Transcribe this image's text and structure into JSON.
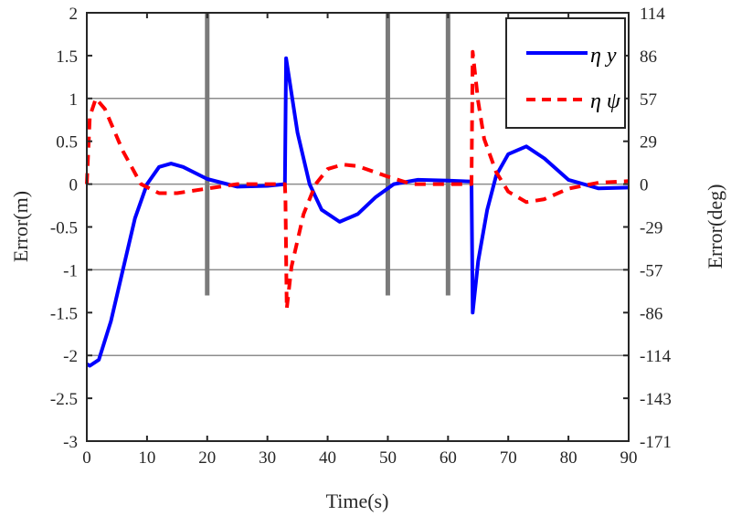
{
  "chart_data": {
    "type": "line",
    "xlabel": "Time(s)",
    "ylabel": "Error(m)",
    "ylabel_right": "Error(deg)",
    "xlim": [
      0,
      90
    ],
    "ylim": [
      -3,
      2
    ],
    "ylim_right": [
      -171,
      114
    ],
    "xticks": [
      "0",
      "10",
      "20",
      "30",
      "40",
      "50",
      "60",
      "70",
      "80",
      "90"
    ],
    "yticks": [
      "2",
      "1.5",
      "1",
      "0.5",
      "0",
      "-0.5",
      "-1",
      "-1.5",
      "-2",
      "-2.5",
      "-3"
    ],
    "yticks_right": [
      "114",
      "86",
      "57",
      "29",
      "0",
      "-29",
      "-57",
      "-86",
      "-114",
      "-143",
      "-171"
    ],
    "grid": "horizontal at y=1, 0, -1, -2",
    "vertical_markers_s": [
      20,
      50,
      60
    ],
    "legend_placement": "top-right",
    "series": [
      {
        "name": "η y",
        "axis": "left",
        "color": "#0000ff",
        "style": "solid",
        "x": [
          0,
          0.5,
          2,
          4,
          6,
          8,
          10,
          12,
          14,
          16,
          20,
          25,
          30,
          32.9,
          33.1,
          35,
          37,
          39,
          42,
          45,
          48,
          51,
          55,
          60,
          63.9,
          64.1,
          65,
          66.5,
          68,
          70,
          73,
          76,
          80,
          85,
          90
        ],
        "y": [
          -2.1,
          -2.12,
          -2.05,
          -1.6,
          -1.0,
          -0.4,
          0.0,
          0.2,
          0.24,
          0.2,
          0.06,
          -0.03,
          -0.02,
          0.0,
          1.47,
          0.6,
          0.0,
          -0.3,
          -0.44,
          -0.35,
          -0.15,
          0.0,
          0.05,
          0.04,
          0.03,
          -1.5,
          -0.9,
          -0.3,
          0.1,
          0.35,
          0.44,
          0.3,
          0.05,
          -0.05,
          -0.04
        ]
      },
      {
        "name": "η ψ",
        "axis": "right",
        "color": "#ff0000",
        "style": "dashed",
        "x": [
          0,
          0.5,
          1.5,
          3,
          6,
          9,
          12,
          15,
          20,
          25,
          32.9,
          33,
          33.2,
          34,
          36,
          38,
          40,
          42.5,
          45,
          50,
          54,
          63.9,
          64.1,
          65,
          66,
          68,
          70,
          73,
          76,
          80,
          85,
          90
        ],
        "y": [
          0,
          45,
          57,
          50,
          22,
          0,
          -6,
          -6,
          -3,
          0,
          0,
          -10,
          -83,
          -55,
          -20,
          0,
          10,
          13,
          12,
          5,
          0,
          0,
          88,
          55,
          30,
          8,
          -5,
          -12,
          -10,
          -3,
          1,
          2
        ]
      }
    ]
  }
}
